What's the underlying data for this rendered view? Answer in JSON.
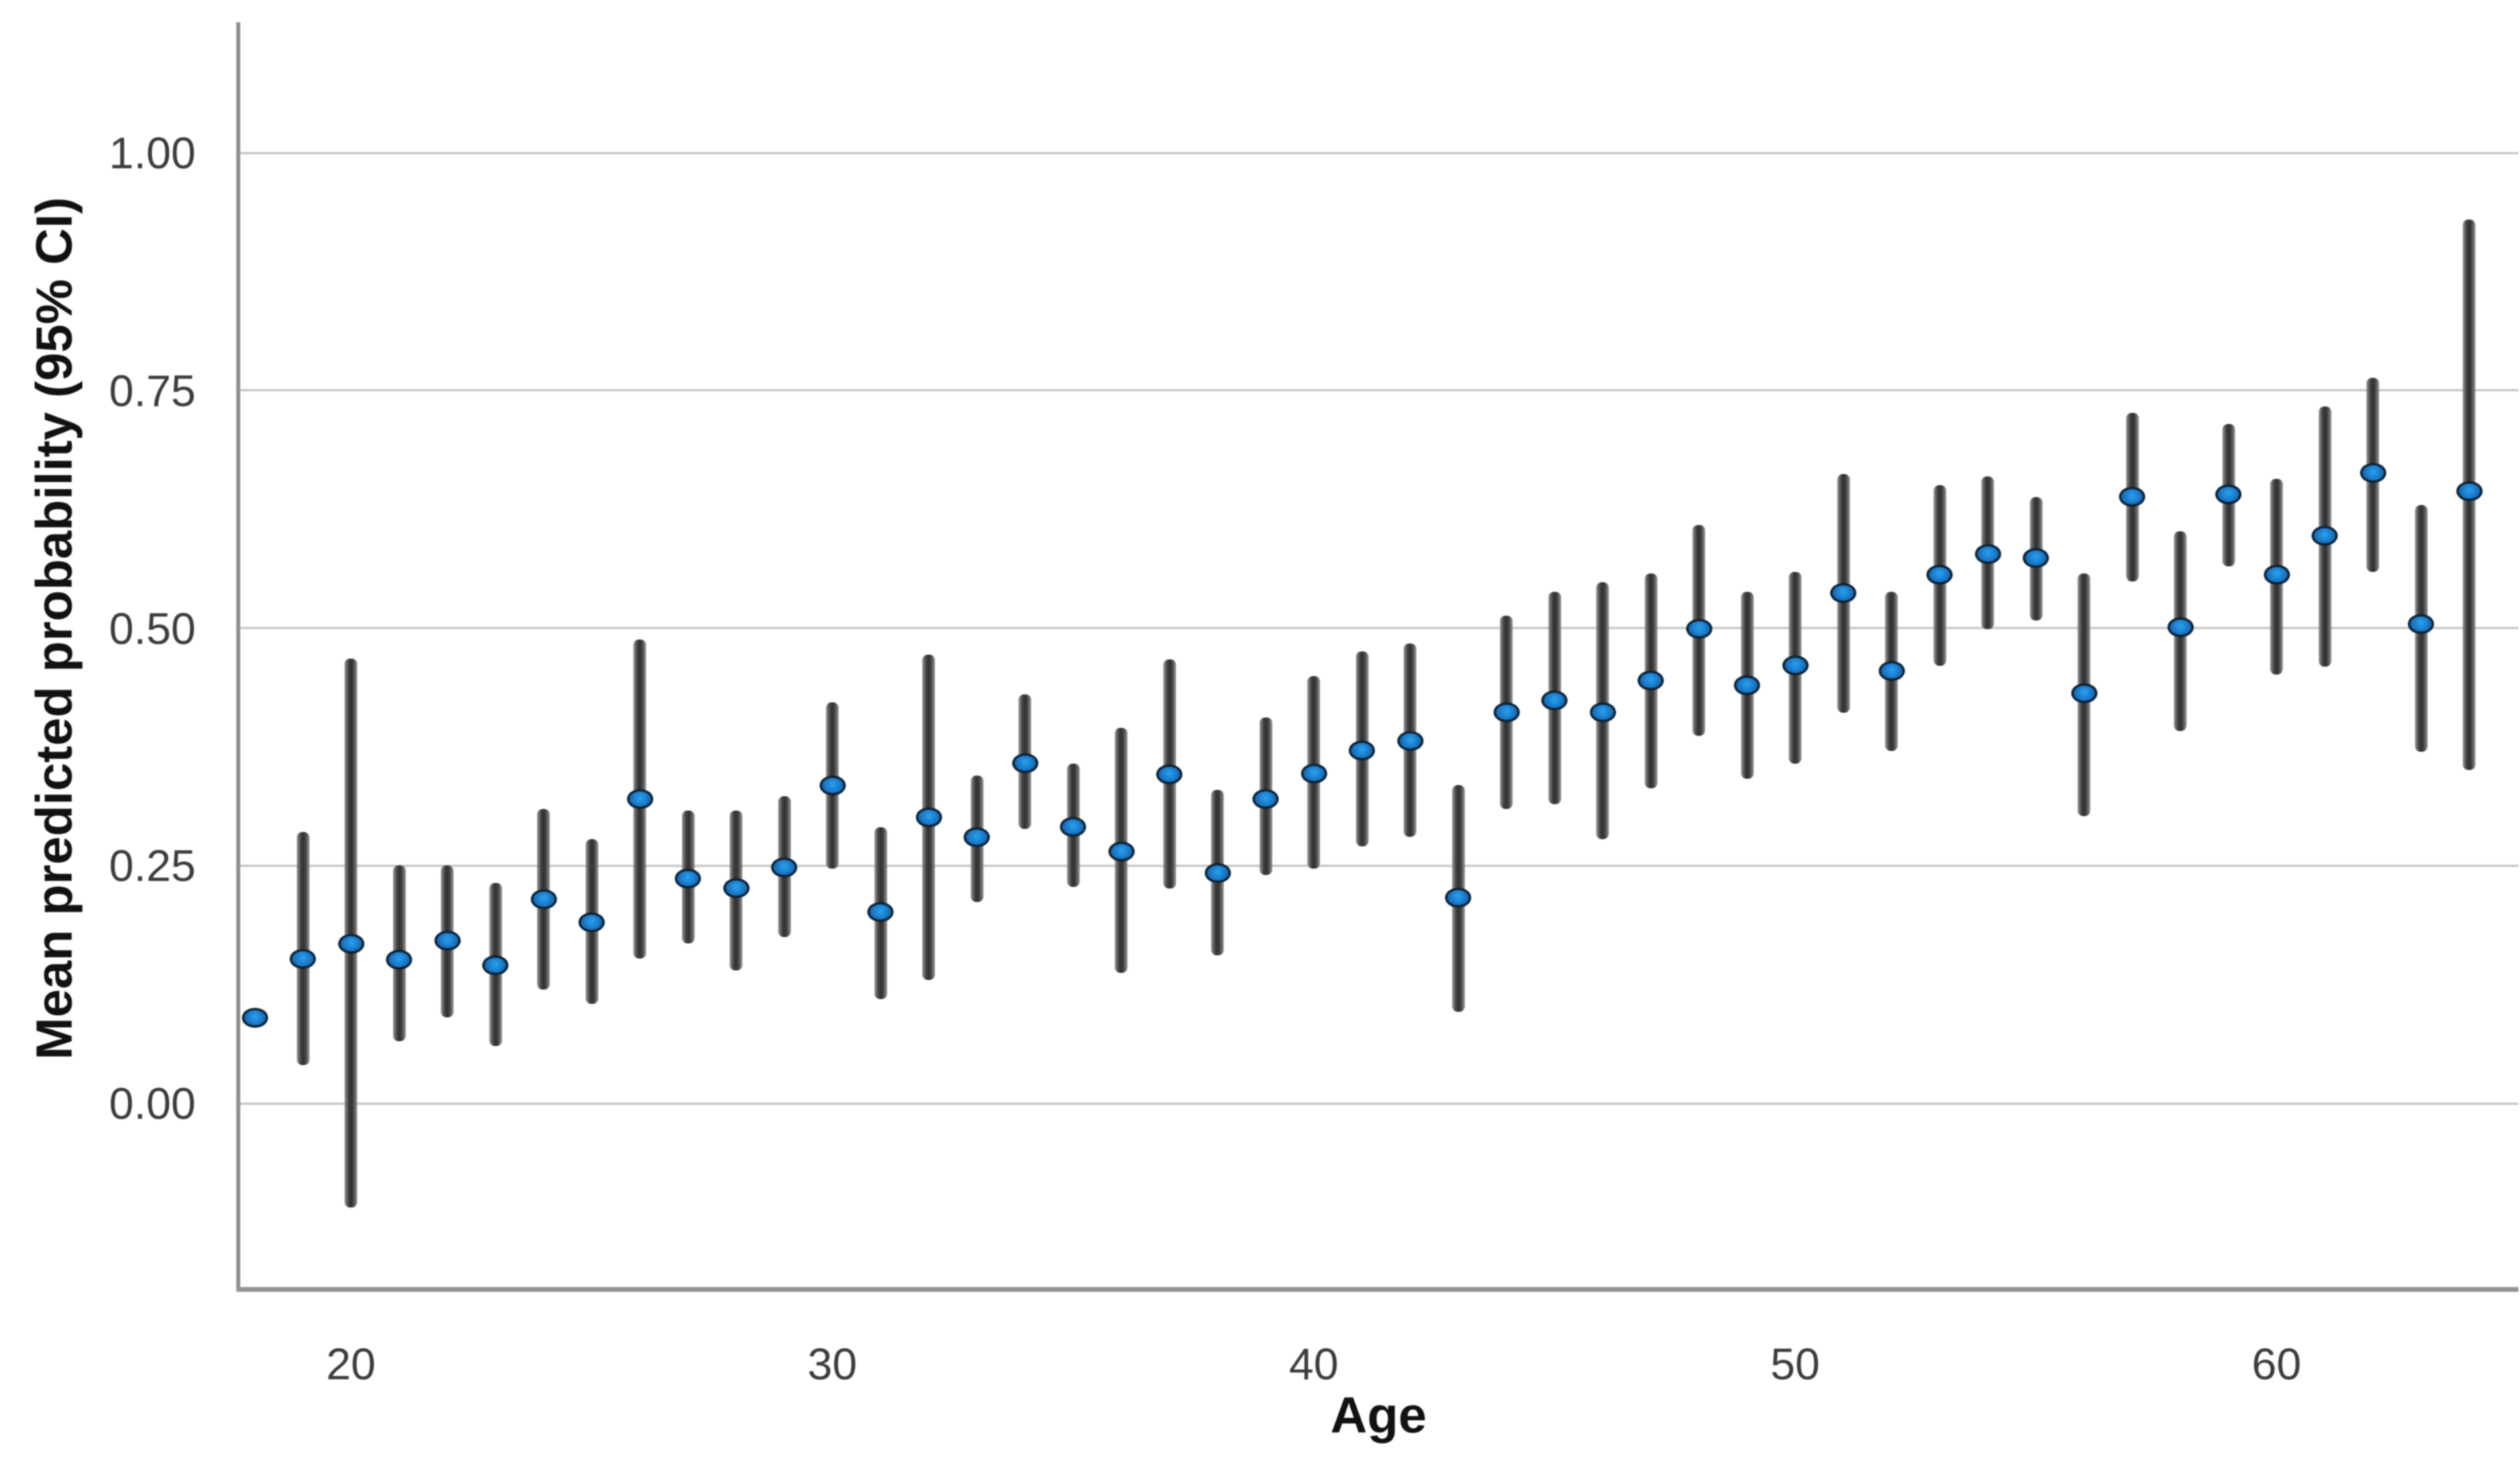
{
  "page": {
    "background": "#ffffff"
  },
  "chart_data": {
    "type": "scatter",
    "variant": "means-with-95ci-error-bars",
    "title": "",
    "xlabel": "Age",
    "ylabel": "Mean predicted probability (95% CI)",
    "legend": null,
    "grid": "horizontal-only",
    "x_ticks": [
      20,
      30,
      40,
      50,
      60
    ],
    "y_ticks": [
      {
        "value": 0.0,
        "label": "0.00"
      },
      {
        "value": 0.25,
        "label": "0.25"
      },
      {
        "value": 0.5,
        "label": "0.50"
      },
      {
        "value": 0.75,
        "label": "0.75"
      },
      {
        "value": 1.0,
        "label": "1.00"
      }
    ],
    "xlim": [
      17.7,
      65.3
    ],
    "ylim": [
      -0.195,
      1.135
    ],
    "colors": {
      "marker_fill": "#1c7fd0",
      "marker_fill_highlight": "#2aa1ea",
      "marker_edge": "#0d2233",
      "error_bar": "#3f3f3f",
      "axis": "#8f8f8f",
      "gridline": "#c9c9c9",
      "tick_text": "#3c3c3c",
      "label_text": "#111111"
    },
    "points": [
      {
        "age": 18,
        "mean": 0.09,
        "ci_low": 0.09,
        "ci_high": 0.09
      },
      {
        "age": 19,
        "mean": 0.152,
        "ci_low": 0.04,
        "ci_high": 0.285
      },
      {
        "age": 20,
        "mean": 0.168,
        "ci_low": -0.11,
        "ci_high": 0.468
      },
      {
        "age": 21,
        "mean": 0.151,
        "ci_low": 0.065,
        "ci_high": 0.25
      },
      {
        "age": 22,
        "mean": 0.171,
        "ci_low": 0.09,
        "ci_high": 0.25
      },
      {
        "age": 23,
        "mean": 0.145,
        "ci_low": 0.06,
        "ci_high": 0.232
      },
      {
        "age": 24,
        "mean": 0.215,
        "ci_low": 0.12,
        "ci_high": 0.31
      },
      {
        "age": 25,
        "mean": 0.19,
        "ci_low": 0.105,
        "ci_high": 0.278
      },
      {
        "age": 26,
        "mean": 0.32,
        "ci_low": 0.152,
        "ci_high": 0.488
      },
      {
        "age": 27,
        "mean": 0.236,
        "ci_low": 0.168,
        "ci_high": 0.308
      },
      {
        "age": 28,
        "mean": 0.226,
        "ci_low": 0.14,
        "ci_high": 0.308
      },
      {
        "age": 29,
        "mean": 0.248,
        "ci_low": 0.175,
        "ci_high": 0.323
      },
      {
        "age": 30,
        "mean": 0.334,
        "ci_low": 0.247,
        "ci_high": 0.422
      },
      {
        "age": 31,
        "mean": 0.201,
        "ci_low": 0.11,
        "ci_high": 0.29
      },
      {
        "age": 32,
        "mean": 0.301,
        "ci_low": 0.13,
        "ci_high": 0.472
      },
      {
        "age": 33,
        "mean": 0.28,
        "ci_low": 0.212,
        "ci_high": 0.345
      },
      {
        "age": 34,
        "mean": 0.358,
        "ci_low": 0.289,
        "ci_high": 0.43
      },
      {
        "age": 35,
        "mean": 0.291,
        "ci_low": 0.228,
        "ci_high": 0.357
      },
      {
        "age": 36,
        "mean": 0.265,
        "ci_low": 0.137,
        "ci_high": 0.395
      },
      {
        "age": 37,
        "mean": 0.346,
        "ci_low": 0.226,
        "ci_high": 0.467
      },
      {
        "age": 38,
        "mean": 0.242,
        "ci_low": 0.156,
        "ci_high": 0.33
      },
      {
        "age": 39,
        "mean": 0.32,
        "ci_low": 0.24,
        "ci_high": 0.406
      },
      {
        "age": 40,
        "mean": 0.347,
        "ci_low": 0.247,
        "ci_high": 0.449
      },
      {
        "age": 41,
        "mean": 0.371,
        "ci_low": 0.27,
        "ci_high": 0.475
      },
      {
        "age": 42,
        "mean": 0.381,
        "ci_low": 0.28,
        "ci_high": 0.484
      },
      {
        "age": 43,
        "mean": 0.216,
        "ci_low": 0.096,
        "ci_high": 0.335
      },
      {
        "age": 44,
        "mean": 0.411,
        "ci_low": 0.31,
        "ci_high": 0.513
      },
      {
        "age": 45,
        "mean": 0.424,
        "ci_low": 0.315,
        "ci_high": 0.538
      },
      {
        "age": 46,
        "mean": 0.411,
        "ci_low": 0.278,
        "ci_high": 0.548
      },
      {
        "age": 47,
        "mean": 0.445,
        "ci_low": 0.331,
        "ci_high": 0.557
      },
      {
        "age": 48,
        "mean": 0.499,
        "ci_low": 0.387,
        "ci_high": 0.608
      },
      {
        "age": 49,
        "mean": 0.44,
        "ci_low": 0.341,
        "ci_high": 0.538
      },
      {
        "age": 50,
        "mean": 0.461,
        "ci_low": 0.357,
        "ci_high": 0.559
      },
      {
        "age": 51,
        "mean": 0.537,
        "ci_low": 0.411,
        "ci_high": 0.662
      },
      {
        "age": 52,
        "mean": 0.455,
        "ci_low": 0.371,
        "ci_high": 0.538
      },
      {
        "age": 53,
        "mean": 0.556,
        "ci_low": 0.46,
        "ci_high": 0.65
      },
      {
        "age": 54,
        "mean": 0.578,
        "ci_low": 0.499,
        "ci_high": 0.659
      },
      {
        "age": 55,
        "mean": 0.574,
        "ci_low": 0.508,
        "ci_high": 0.638
      },
      {
        "age": 56,
        "mean": 0.431,
        "ci_low": 0.302,
        "ci_high": 0.557
      },
      {
        "age": 57,
        "mean": 0.638,
        "ci_low": 0.549,
        "ci_high": 0.726
      },
      {
        "age": 58,
        "mean": 0.501,
        "ci_low": 0.392,
        "ci_high": 0.602
      },
      {
        "age": 59,
        "mean": 0.641,
        "ci_low": 0.565,
        "ci_high": 0.715
      },
      {
        "age": 60,
        "mean": 0.556,
        "ci_low": 0.451,
        "ci_high": 0.657
      },
      {
        "age": 61,
        "mean": 0.597,
        "ci_low": 0.459,
        "ci_high": 0.733
      },
      {
        "age": 62,
        "mean": 0.663,
        "ci_low": 0.559,
        "ci_high": 0.763
      },
      {
        "age": 63,
        "mean": 0.504,
        "ci_low": 0.37,
        "ci_high": 0.629
      },
      {
        "age": 64,
        "mean": 0.644,
        "ci_low": 0.351,
        "ci_high": 0.93
      }
    ]
  }
}
